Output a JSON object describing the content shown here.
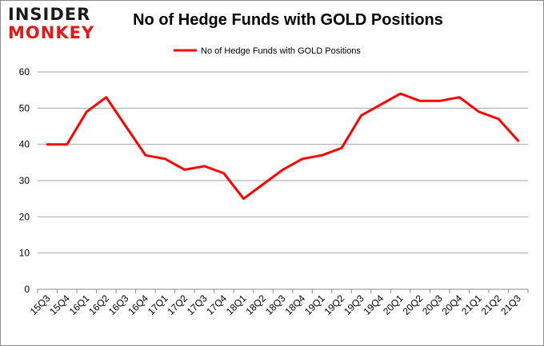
{
  "logo": {
    "line1": "INSIDER",
    "line2": "MONKEY"
  },
  "chart_data": {
    "type": "line",
    "title": "No of Hedge Funds with GOLD Positions",
    "xlabel": "",
    "ylabel": "",
    "categories": [
      "15Q3",
      "15Q4",
      "16Q1",
      "16Q2",
      "16Q3",
      "16Q4",
      "17Q1",
      "17Q2",
      "17Q3",
      "17Q4",
      "18Q1",
      "18Q2",
      "18Q3",
      "18Q4",
      "19Q1",
      "19Q2",
      "19Q3",
      "19Q4",
      "20Q1",
      "20Q2",
      "20Q3",
      "20Q4",
      "21Q1",
      "21Q2",
      "21Q3"
    ],
    "series": [
      {
        "name": "No of Hedge Funds with GOLD Positions",
        "color": "#ff0000",
        "values": [
          40,
          40,
          49,
          53,
          45,
          37,
          36,
          33,
          34,
          32,
          25,
          29,
          33,
          36,
          37,
          39,
          48,
          51,
          54,
          52,
          52,
          53,
          49,
          47,
          41
        ]
      }
    ],
    "ylim": [
      0,
      60
    ],
    "yticks": [
      0,
      10,
      20,
      30,
      40,
      50,
      60
    ],
    "grid": "horizontal",
    "legend_position": "top-center"
  }
}
